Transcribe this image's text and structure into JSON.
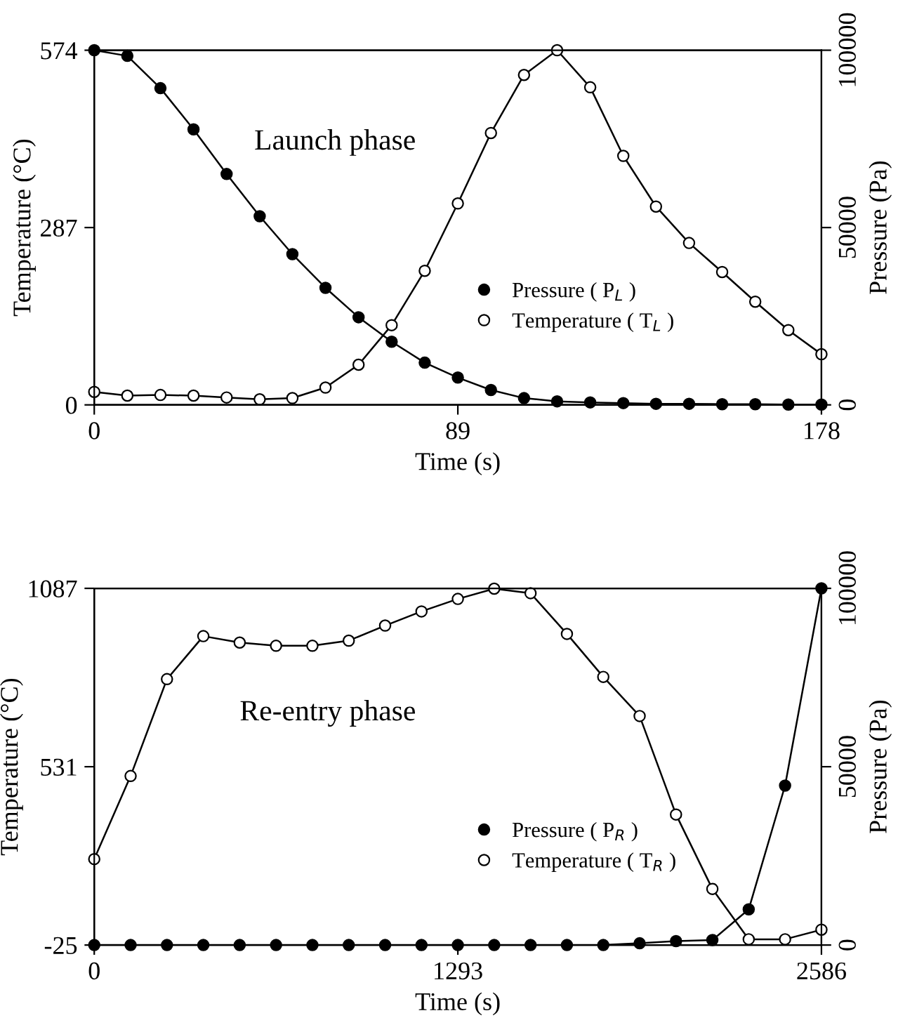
{
  "chart_data": [
    {
      "type": "line",
      "xlabel": "Time (s)",
      "ylabel": "Temperature (°C)",
      "y2label": "Pressure (Pa)",
      "annotations": [
        "Launch phase"
      ],
      "x": [
        0,
        8.1,
        16.2,
        24.3,
        32.4,
        40.5,
        48.5,
        56.6,
        64.7,
        72.8,
        80.9,
        89,
        97.1,
        105.2,
        113.3,
        121.4,
        129.5,
        137.5,
        145.6,
        153.7,
        161.8,
        169.9,
        178
      ],
      "series": [
        {
          "name": "Pressure ( P$_{L}$ )",
          "color": "#000000",
          "axis": "y2",
          "values": [
            100000,
            98400,
            89300,
            77700,
            65100,
            53200,
            42500,
            33000,
            24700,
            17800,
            11900,
            7700,
            4200,
            1900,
            1000,
            700,
            500,
            300,
            300,
            200,
            200,
            100,
            100
          ]
        },
        {
          "name": "Temperature ( T$_{L}$ )",
          "color": "#000000",
          "axis": "y",
          "values": [
            21,
            15,
            16,
            15,
            12,
            9,
            11,
            28,
            65,
            129,
            217,
            326,
            440,
            534,
            574,
            514,
            403,
            321,
            262,
            215,
            167,
            121,
            82
          ]
        }
      ],
      "xlim": [
        0,
        178
      ],
      "xticks": [
        0,
        89,
        178
      ],
      "ylim": [
        0,
        574
      ],
      "yticks": [
        0,
        287,
        574
      ],
      "y2lim": [
        0,
        100000
      ],
      "y2ticks": [
        0,
        50000,
        100000
      ],
      "marker": "circle",
      "line_style": "solid",
      "legend": "center right",
      "grid": false
    },
    {
      "type": "line",
      "xlabel": "Time (s)",
      "ylabel": "Temperature (°C)",
      "y2label": "Pressure (Pa)",
      "annotations": [
        "Re-entry phase"
      ],
      "x": [
        0,
        129.3,
        258.6,
        387.9,
        517.2,
        646.5,
        775.8,
        905.1,
        1034.4,
        1163.7,
        1293,
        1422.3,
        1551.6,
        1680.9,
        1810.2,
        1939.5,
        2068.8,
        2198.1,
        2327.4,
        2456.7,
        2586
      ],
      "series": [
        {
          "name": "Pressure ( P$_{R}$ )",
          "color": "#000000",
          "axis": "y2",
          "values": [
            0,
            0,
            0,
            0,
            0,
            0,
            0,
            0,
            0,
            0,
            0,
            0,
            0,
            0,
            0,
            500,
            1100,
            1400,
            10000,
            44700,
            100000
          ]
        },
        {
          "name": "Temperature ( T$_{R}$ )",
          "color": "#000000",
          "axis": "y",
          "values": [
            243,
            502,
            804,
            938,
            918,
            908,
            908,
            924,
            971,
            1015,
            1054,
            1086,
            1072,
            945,
            811,
            689,
            382,
            150,
            -7,
            -7,
            23
          ]
        }
      ],
      "xlim": [
        0,
        2586
      ],
      "xticks": [
        0,
        1293,
        2586
      ],
      "ylim": [
        -25,
        1087
      ],
      "yticks": [
        -25,
        531,
        1087
      ],
      "y2lim": [
        0,
        100000
      ],
      "y2ticks": [
        0,
        50000,
        100000
      ],
      "marker": "circle",
      "line_style": "solid",
      "legend": "center right",
      "grid": false
    }
  ]
}
